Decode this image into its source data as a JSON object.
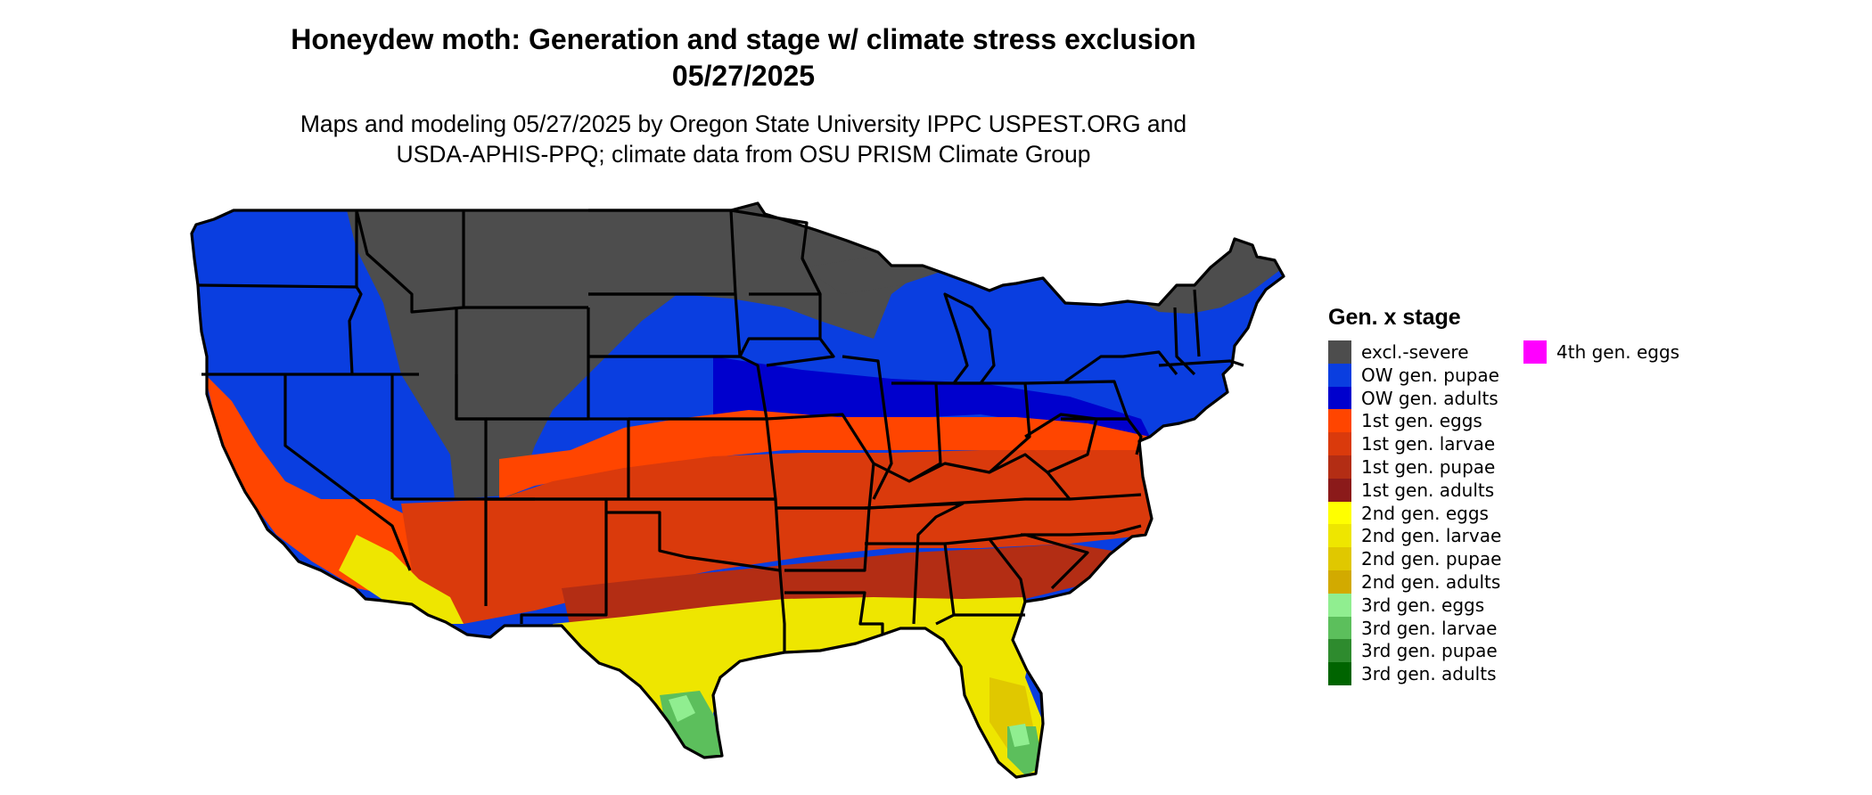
{
  "title_line1": "Honeydew moth: Generation and stage w/ climate stress exclusion",
  "title_line2": "05/27/2025",
  "subtitle_line1": "Maps and modeling 05/27/2025 by Oregon State University IPPC USPEST.ORG and",
  "subtitle_line2": "USDA-APHIS-PPQ; climate data from OSU PRISM Climate Group",
  "legend": {
    "title": "Gen. x stage",
    "items": [
      {
        "label": "excl.-severe",
        "color": "#4d4d4d"
      },
      {
        "label": "OW gen. pupae",
        "color": "#0a3ee0"
      },
      {
        "label": "OW gen. adults",
        "color": "#0000cd"
      },
      {
        "label": "1st gen. eggs",
        "color": "#ff4500"
      },
      {
        "label": "1st gen. larvae",
        "color": "#da3a0c"
      },
      {
        "label": "1st gen. pupae",
        "color": "#b32d14"
      },
      {
        "label": "1st gen. adults",
        "color": "#8b1a1a"
      },
      {
        "label": "2nd gen. eggs",
        "color": "#ffff00"
      },
      {
        "label": "2nd gen. larvae",
        "color": "#eee600"
      },
      {
        "label": "2nd gen. pupae",
        "color": "#e0c800"
      },
      {
        "label": "2nd gen. adults",
        "color": "#d2aa00"
      },
      {
        "label": "3rd gen. eggs",
        "color": "#90ee90"
      },
      {
        "label": "3rd gen. larvae",
        "color": "#5cbf5c"
      },
      {
        "label": "3rd gen. pupae",
        "color": "#2e8b2e"
      },
      {
        "label": "3rd gen. adults",
        "color": "#006400"
      },
      {
        "label": "4th gen. eggs",
        "color": "#ff00ff"
      }
    ]
  },
  "map_colors": {
    "border": "#000000",
    "excluded": "#4d4d4d",
    "ow_pupae": "#0a3ee0",
    "ow_adults": "#0000cd",
    "g1_eggs": "#ff4500",
    "g1_larvae": "#da3a0c",
    "g1_pupae": "#b32d14",
    "g2_larvae": "#eee600",
    "g2_pupae": "#e0c800",
    "g3_eggs": "#90ee90",
    "g3_larvae": "#5cbf5c"
  }
}
